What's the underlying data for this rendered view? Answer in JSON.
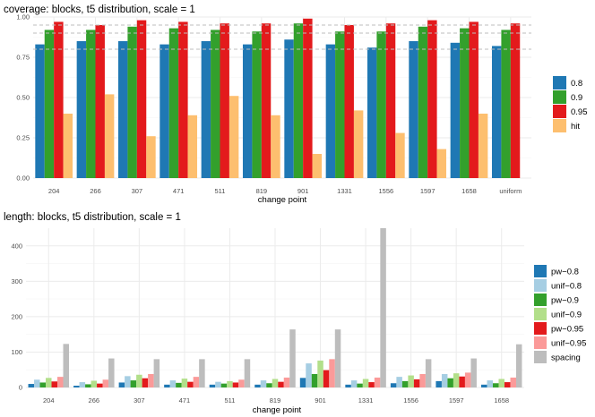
{
  "colors": {
    "panel_bg": "#ffffff",
    "grid_major": "#ebebeb",
    "grid_minor": "#f5f5f5",
    "ref_line": "#bdbdbd"
  },
  "chart_data": [
    {
      "type": "bar",
      "title": "coverage: blocks, t5 distribution, scale = 1",
      "xlabel": "change point",
      "ylabel": "",
      "categories": [
        "204",
        "266",
        "307",
        "471",
        "511",
        "819",
        "901",
        "1331",
        "1556",
        "1597",
        "1658",
        "uniform"
      ],
      "ylim": [
        0,
        1.0
      ],
      "yticks": [
        0.0,
        0.25,
        0.5,
        0.75,
        1.0
      ],
      "ytick_labels": [
        "0.00",
        "0.25",
        "0.50",
        "0.75",
        "1.00"
      ],
      "reference_lines": [
        0.8,
        0.9,
        0.95
      ],
      "grid": true,
      "legend_position": "right",
      "series": [
        {
          "name": "0.8",
          "color": "#1f78b4",
          "values": [
            0.83,
            0.85,
            0.85,
            0.83,
            0.85,
            0.83,
            0.86,
            0.83,
            0.81,
            0.85,
            0.84,
            0.82
          ]
        },
        {
          "name": "0.9",
          "color": "#33a02c",
          "values": [
            0.92,
            0.92,
            0.94,
            0.93,
            0.92,
            0.91,
            0.96,
            0.91,
            0.91,
            0.94,
            0.93,
            0.92
          ]
        },
        {
          "name": "0.95",
          "color": "#e31a1c",
          "values": [
            0.97,
            0.95,
            0.98,
            0.97,
            0.96,
            0.96,
            0.99,
            0.95,
            0.96,
            0.98,
            0.97,
            0.96
          ]
        },
        {
          "name": "hit",
          "color": "#fdbf6f",
          "values": [
            0.4,
            0.52,
            0.26,
            0.39,
            0.51,
            0.39,
            0.15,
            0.42,
            0.28,
            0.18,
            0.4,
            null
          ]
        }
      ]
    },
    {
      "type": "bar",
      "title": "length: blocks, t5 distribution, scale = 1",
      "xlabel": "change point",
      "ylabel": "",
      "categories": [
        "204",
        "266",
        "307",
        "471",
        "511",
        "819",
        "901",
        "1331",
        "1556",
        "1597",
        "1658"
      ],
      "ylim": [
        0,
        450
      ],
      "yticks": [
        0,
        100,
        200,
        300,
        400
      ],
      "ytick_labels": [
        "0",
        "100",
        "200",
        "300",
        "400"
      ],
      "grid": true,
      "legend_position": "right",
      "series": [
        {
          "name": "pw−0.8",
          "color": "#1f78b4",
          "values": [
            10,
            5,
            14,
            8,
            8,
            8,
            27,
            8,
            12,
            18,
            8
          ]
        },
        {
          "name": "unif−0.8",
          "color": "#a6cee3",
          "values": [
            22,
            15,
            32,
            20,
            16,
            20,
            68,
            20,
            30,
            38,
            20
          ]
        },
        {
          "name": "pw−0.9",
          "color": "#33a02c",
          "values": [
            14,
            9,
            20,
            13,
            11,
            12,
            38,
            11,
            18,
            26,
            12
          ]
        },
        {
          "name": "unif−0.9",
          "color": "#b2df8a",
          "values": [
            27,
            19,
            36,
            25,
            18,
            24,
            76,
            24,
            34,
            40,
            24
          ]
        },
        {
          "name": "pw−0.95",
          "color": "#e31a1c",
          "values": [
            17,
            11,
            26,
            16,
            14,
            16,
            49,
            15,
            23,
            31,
            15
          ]
        },
        {
          "name": "unif−0.95",
          "color": "#fb9a99",
          "values": [
            30,
            22,
            38,
            30,
            22,
            28,
            80,
            28,
            38,
            42,
            28
          ]
        },
        {
          "name": "spacing",
          "color": "#bdbdbd",
          "values": [
            123,
            82,
            80,
            80,
            80,
            164,
            164,
            450,
            80,
            82,
            122
          ]
        }
      ]
    }
  ]
}
